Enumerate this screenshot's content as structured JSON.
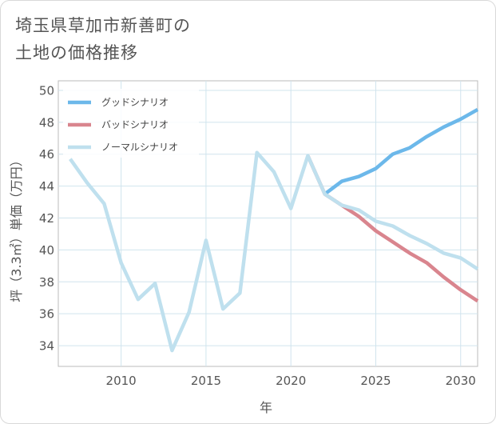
{
  "title": {
    "line1": "埼玉県草加市新善町の",
    "line2": "土地の価格推移"
  },
  "chart_data": {
    "type": "line",
    "xlabel": "年",
    "ylabel": "坪（3.3㎡）単価（万円）",
    "xlim": [
      2006.3,
      2031.0
    ],
    "ylim": [
      32.7,
      50.6
    ],
    "x_ticks": [
      2010,
      2015,
      2020,
      2025,
      2030
    ],
    "x_tick_labels": [
      "2010",
      "2015",
      "2020",
      "2025",
      "2030"
    ],
    "y_ticks": [
      34,
      36,
      38,
      40,
      42,
      44,
      46,
      48,
      50
    ],
    "y_tick_labels": [
      "34",
      "36",
      "38",
      "40",
      "42",
      "44",
      "46",
      "48",
      "50"
    ],
    "grid": true,
    "legend_position": "top-left",
    "series": [
      {
        "name": "グッドシナリオ",
        "color": "#6cb8ea",
        "x": [
          2022,
          2023,
          2024,
          2025,
          2026,
          2027,
          2028,
          2029,
          2030,
          2031
        ],
        "values": [
          43.5,
          44.3,
          44.6,
          45.1,
          46.0,
          46.4,
          47.1,
          47.7,
          48.2,
          48.8
        ]
      },
      {
        "name": "バッドシナリオ",
        "color": "#d9858e",
        "x": [
          2021,
          2022,
          2023,
          2024,
          2025,
          2026,
          2027,
          2028,
          2029,
          2030,
          2031
        ],
        "values": [
          45.9,
          43.5,
          42.8,
          42.1,
          41.2,
          40.5,
          39.8,
          39.2,
          38.3,
          37.5,
          36.8
        ]
      },
      {
        "name": "ノーマルシナリオ",
        "color": "#bfe0ee",
        "x": [
          2007,
          2008,
          2009,
          2010,
          2011,
          2012,
          2013,
          2014,
          2015,
          2016,
          2017,
          2018,
          2019,
          2020,
          2021,
          2022,
          2023,
          2024,
          2025,
          2026,
          2027,
          2028,
          2029,
          2030,
          2031
        ],
        "values": [
          45.7,
          44.2,
          42.9,
          39.2,
          36.9,
          37.9,
          33.7,
          36.1,
          40.6,
          36.3,
          37.3,
          46.1,
          44.9,
          42.6,
          45.9,
          43.5,
          42.8,
          42.5,
          41.8,
          41.5,
          40.9,
          40.4,
          39.8,
          39.5,
          38.8
        ]
      }
    ]
  }
}
